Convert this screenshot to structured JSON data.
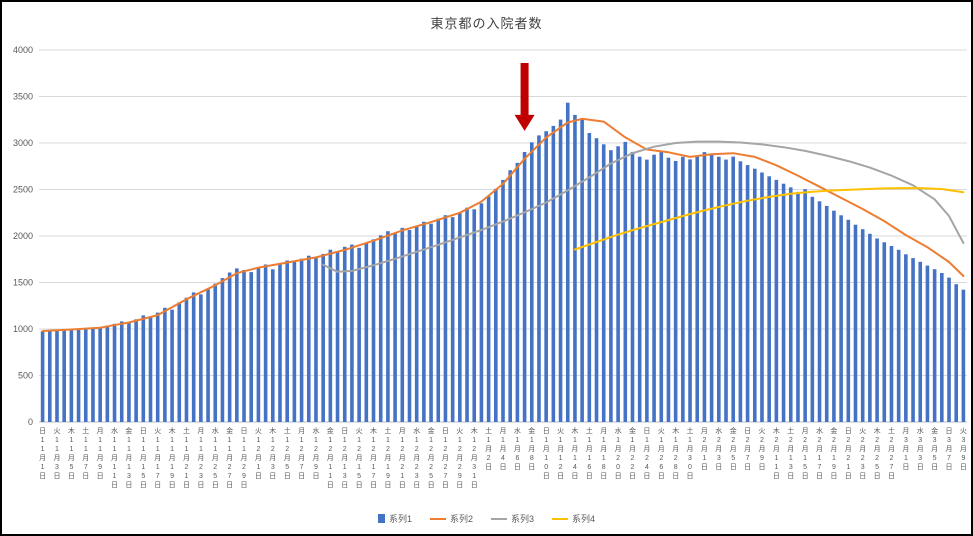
{
  "chart_data": {
    "type": "bar",
    "combo": "bar+line",
    "title": "東京都の入院者数",
    "ylim": [
      0,
      4000
    ],
    "y_ticks": [
      0,
      500,
      1000,
      1500,
      2000,
      2500,
      3000,
      3500,
      4000
    ],
    "grid": "horizontal",
    "grid_color": "#d9d9d9",
    "axis_color": "#bfbfbf",
    "tick_label_color": "#595959",
    "x_label_every_days": 2,
    "x_labels": [
      "日11月1日",
      "火11月3日",
      "木11月5日",
      "土11月7日",
      "月11月9日",
      "水11月11日",
      "金11月13日",
      "日11月15日",
      "火11月17日",
      "木11月19日",
      "土11月21日",
      "月11月23日",
      "水11月25日",
      "金11月27日",
      "日11月29日",
      "火12月1日",
      "木12月3日",
      "土12月5日",
      "月12月7日",
      "水12月9日",
      "金12月11日",
      "日12月13日",
      "火12月15日",
      "木12月17日",
      "土12月19日",
      "月12月21日",
      "水12月23日",
      "金12月25日",
      "日12月27日",
      "火12月29日",
      "木12月31日",
      "土1月2日",
      "月1月4日",
      "水1月6日",
      "金1月8日",
      "日1月10日",
      "火1月12日",
      "木1月14日",
      "土1月16日",
      "月1月18日",
      "水1月20日",
      "金1月22日",
      "日1月24日",
      "火1月26日",
      "木1月28日",
      "土1月30日",
      "月2月1日",
      "水2月3日",
      "金2月5日",
      "日2月7日",
      "火2月9日",
      "木2月11日",
      "土2月13日",
      "月2月15日",
      "水2月17日",
      "金2月19日",
      "日2月21日",
      "火2月23日",
      "木2月25日",
      "土2月27日",
      "月3月1日",
      "水3月3日",
      "金3月5日",
      "日3月7日",
      "火3月9日"
    ],
    "series1": {
      "name": "系列1",
      "type": "bar",
      "color": "#4472c4",
      "values": [
        975,
        982,
        978,
        991,
        1003,
        996,
        1012,
        1006,
        1021,
        1038,
        1056,
        1082,
        1067,
        1104,
        1146,
        1133,
        1176,
        1228,
        1207,
        1286,
        1337,
        1394,
        1372,
        1426,
        1488,
        1547,
        1608,
        1652,
        1634,
        1612,
        1663,
        1694,
        1642,
        1706,
        1737,
        1724,
        1756,
        1788,
        1764,
        1807,
        1853,
        1832,
        1884,
        1908,
        1873,
        1922,
        1964,
        2008,
        2052,
        2033,
        2087,
        2064,
        2108,
        2153,
        2132,
        2186,
        2224,
        2203,
        2256,
        2304,
        2287,
        2352,
        2428,
        2507,
        2603,
        2708,
        2786,
        2903,
        3008,
        3082,
        3127,
        3184,
        3252,
        3433,
        3302,
        3254,
        3108,
        3052,
        2986,
        2923,
        2964,
        3012,
        2904,
        2853,
        2822,
        2874,
        2913,
        2842,
        2806,
        2852,
        2824,
        2863,
        2902,
        2884,
        2853,
        2822,
        2854,
        2803,
        2762,
        2724,
        2683,
        2642,
        2603,
        2562,
        2523,
        2474,
        2503,
        2422,
        2373,
        2324,
        2272,
        2223,
        2174,
        2122,
        2073,
        2024,
        1973,
        1932,
        1893,
        1852,
        1803,
        1762,
        1723,
        1682,
        1643,
        1602,
        1553,
        1482,
        1423
      ]
    },
    "series2": {
      "name": "系列2",
      "type": "line",
      "color": "#ed7d31",
      "points": [
        [
          0,
          978
        ],
        [
          4,
          995
        ],
        [
          8,
          1014
        ],
        [
          12,
          1070
        ],
        [
          16,
          1150
        ],
        [
          20,
          1320
        ],
        [
          24,
          1470
        ],
        [
          27,
          1600
        ],
        [
          30,
          1660
        ],
        [
          34,
          1715
        ],
        [
          38,
          1770
        ],
        [
          42,
          1850
        ],
        [
          46,
          1950
        ],
        [
          50,
          2060
        ],
        [
          54,
          2150
        ],
        [
          58,
          2250
        ],
        [
          61,
          2370
        ],
        [
          64,
          2560
        ],
        [
          67,
          2830
        ],
        [
          70,
          3060
        ],
        [
          73,
          3220
        ],
        [
          75,
          3260
        ],
        [
          78,
          3230
        ],
        [
          81,
          3060
        ],
        [
          84,
          2930
        ],
        [
          87,
          2900
        ],
        [
          90,
          2850
        ],
        [
          93,
          2880
        ],
        [
          96,
          2890
        ],
        [
          99,
          2850
        ],
        [
          102,
          2760
        ],
        [
          105,
          2650
        ],
        [
          108,
          2530
        ],
        [
          111,
          2410
        ],
        [
          114,
          2290
        ],
        [
          117,
          2160
        ],
        [
          120,
          2010
        ],
        [
          123,
          1880
        ],
        [
          126,
          1720
        ],
        [
          128,
          1570
        ]
      ]
    },
    "series3": {
      "name": "系列3",
      "type": "line",
      "color": "#a5a5a5",
      "points": [
        [
          39,
          1690
        ],
        [
          41,
          1615
        ],
        [
          43,
          1625
        ],
        [
          46,
          1685
        ],
        [
          49,
          1755
        ],
        [
          52,
          1830
        ],
        [
          55,
          1905
        ],
        [
          58,
          1985
        ],
        [
          61,
          2065
        ],
        [
          64,
          2155
        ],
        [
          67,
          2255
        ],
        [
          70,
          2360
        ],
        [
          73,
          2490
        ],
        [
          76,
          2630
        ],
        [
          79,
          2780
        ],
        [
          82,
          2890
        ],
        [
          85,
          2960
        ],
        [
          88,
          3000
        ],
        [
          91,
          3015
        ],
        [
          94,
          3015
        ],
        [
          97,
          3005
        ],
        [
          100,
          2985
        ],
        [
          103,
          2955
        ],
        [
          106,
          2915
        ],
        [
          109,
          2865
        ],
        [
          112,
          2805
        ],
        [
          115,
          2735
        ],
        [
          118,
          2650
        ],
        [
          121,
          2545
        ],
        [
          124,
          2395
        ],
        [
          126,
          2215
        ],
        [
          128,
          1925
        ]
      ]
    },
    "series4": {
      "name": "系列4",
      "type": "line",
      "color": "#ffc000",
      "points": [
        [
          74,
          1855
        ],
        [
          77,
          1935
        ],
        [
          80,
          2015
        ],
        [
          83,
          2085
        ],
        [
          86,
          2150
        ],
        [
          89,
          2215
        ],
        [
          92,
          2275
        ],
        [
          95,
          2330
        ],
        [
          98,
          2380
        ],
        [
          101,
          2420
        ],
        [
          104,
          2455
        ],
        [
          107,
          2475
        ],
        [
          110,
          2490
        ],
        [
          113,
          2500
        ],
        [
          116,
          2510
        ],
        [
          119,
          2515
        ],
        [
          122,
          2515
        ],
        [
          125,
          2505
        ],
        [
          128,
          2470
        ]
      ]
    },
    "annotation_arrow": {
      "shape": "down-arrow",
      "color": "#c00000",
      "day_index": 67,
      "tip_value": 3130,
      "tail_value": 3860
    },
    "legend": [
      {
        "label": "系列1",
        "color": "#4472c4",
        "marker": "bar"
      },
      {
        "label": "系列2",
        "color": "#ed7d31",
        "marker": "line"
      },
      {
        "label": "系列3",
        "color": "#a5a5a5",
        "marker": "line"
      },
      {
        "label": "系列4",
        "color": "#ffc000",
        "marker": "line"
      }
    ]
  }
}
